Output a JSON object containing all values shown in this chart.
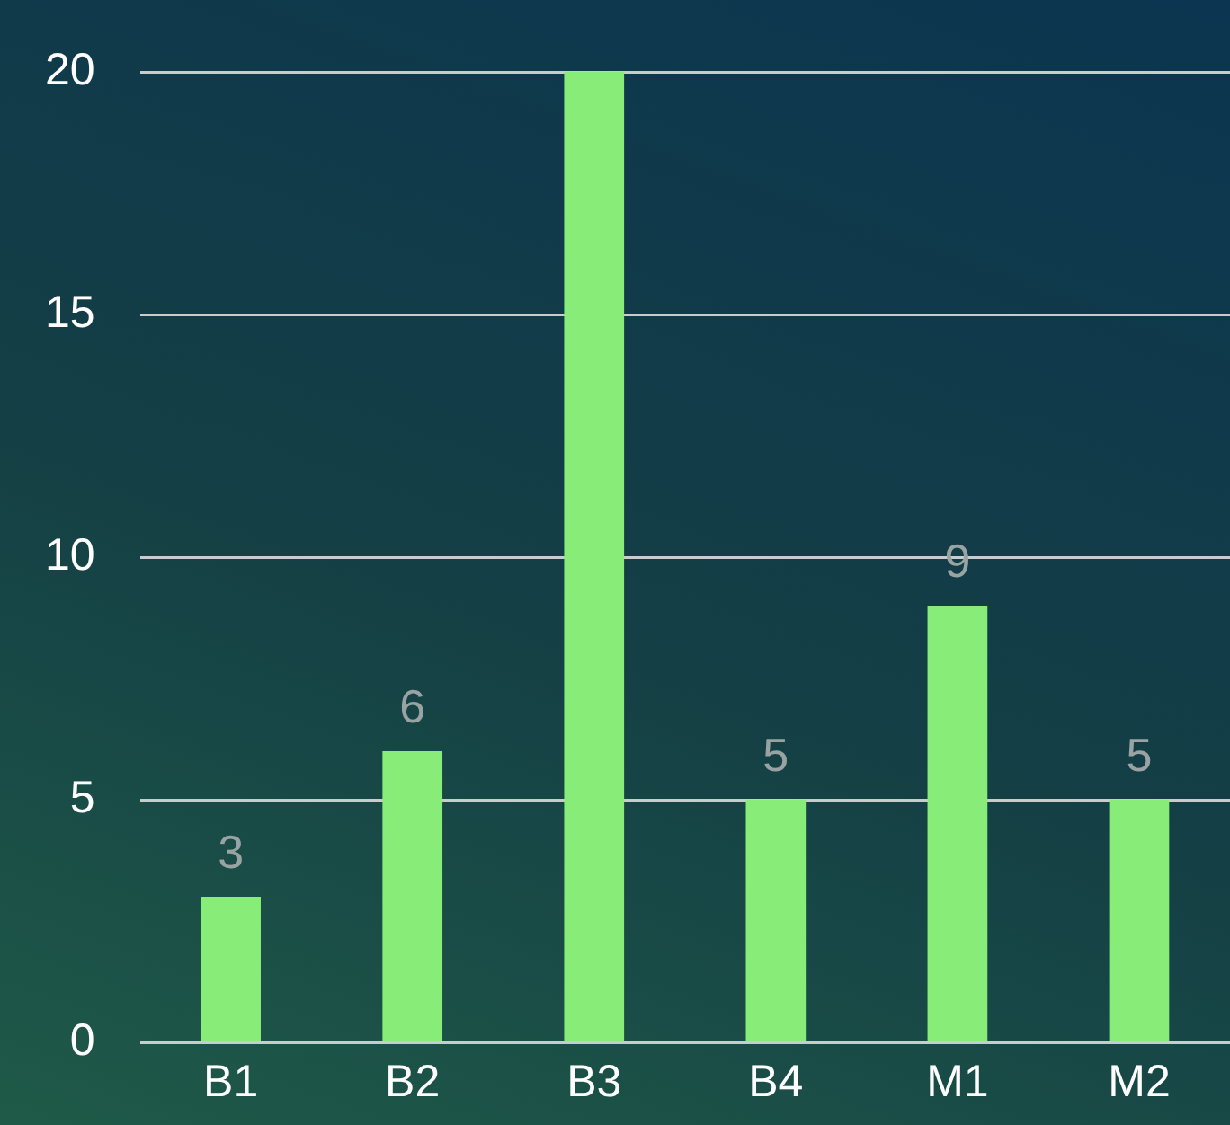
{
  "chart_data": {
    "type": "bar",
    "categories": [
      "B1",
      "B2",
      "B3",
      "B4",
      "M1",
      "M2"
    ],
    "values": [
      3,
      6,
      20,
      5,
      9,
      5
    ],
    "value_labels": [
      "3",
      "6",
      null,
      "5",
      "9",
      "5"
    ],
    "color": "#88ec78",
    "ylim": [
      0,
      20
    ],
    "yticks": [
      0,
      5,
      10,
      15,
      20
    ],
    "grid": "y",
    "legend": false
  }
}
